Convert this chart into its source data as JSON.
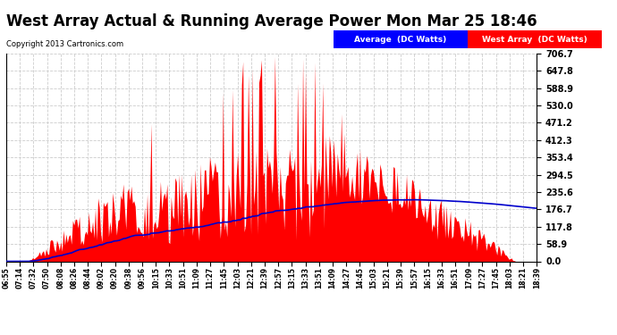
{
  "title": "West Array Actual & Running Average Power Mon Mar 25 18:46",
  "copyright": "Copyright 2013 Cartronics.com",
  "legend_avg": "Average  (DC Watts)",
  "legend_west": "West Array  (DC Watts)",
  "y_ticks": [
    0.0,
    58.9,
    117.8,
    176.7,
    235.6,
    294.5,
    353.4,
    412.3,
    471.2,
    530.0,
    588.9,
    647.8,
    706.7
  ],
  "ymax": 706.7,
  "ymin": 0.0,
  "background_color": "#ffffff",
  "grid_color": "#cccccc",
  "red_color": "#ff0000",
  "blue_color": "#0000cc",
  "title_fontsize": 12,
  "x_tick_labels": [
    "06:55",
    "07:14",
    "07:32",
    "07:50",
    "08:08",
    "08:26",
    "08:44",
    "09:02",
    "09:20",
    "09:38",
    "09:56",
    "10:15",
    "10:33",
    "10:51",
    "11:09",
    "11:27",
    "11:45",
    "12:03",
    "12:21",
    "12:39",
    "12:57",
    "13:15",
    "13:33",
    "13:51",
    "14:09",
    "14:27",
    "14:45",
    "15:03",
    "15:21",
    "15:39",
    "15:57",
    "16:15",
    "16:33",
    "16:51",
    "17:09",
    "17:27",
    "17:45",
    "18:03",
    "18:21",
    "18:39"
  ]
}
